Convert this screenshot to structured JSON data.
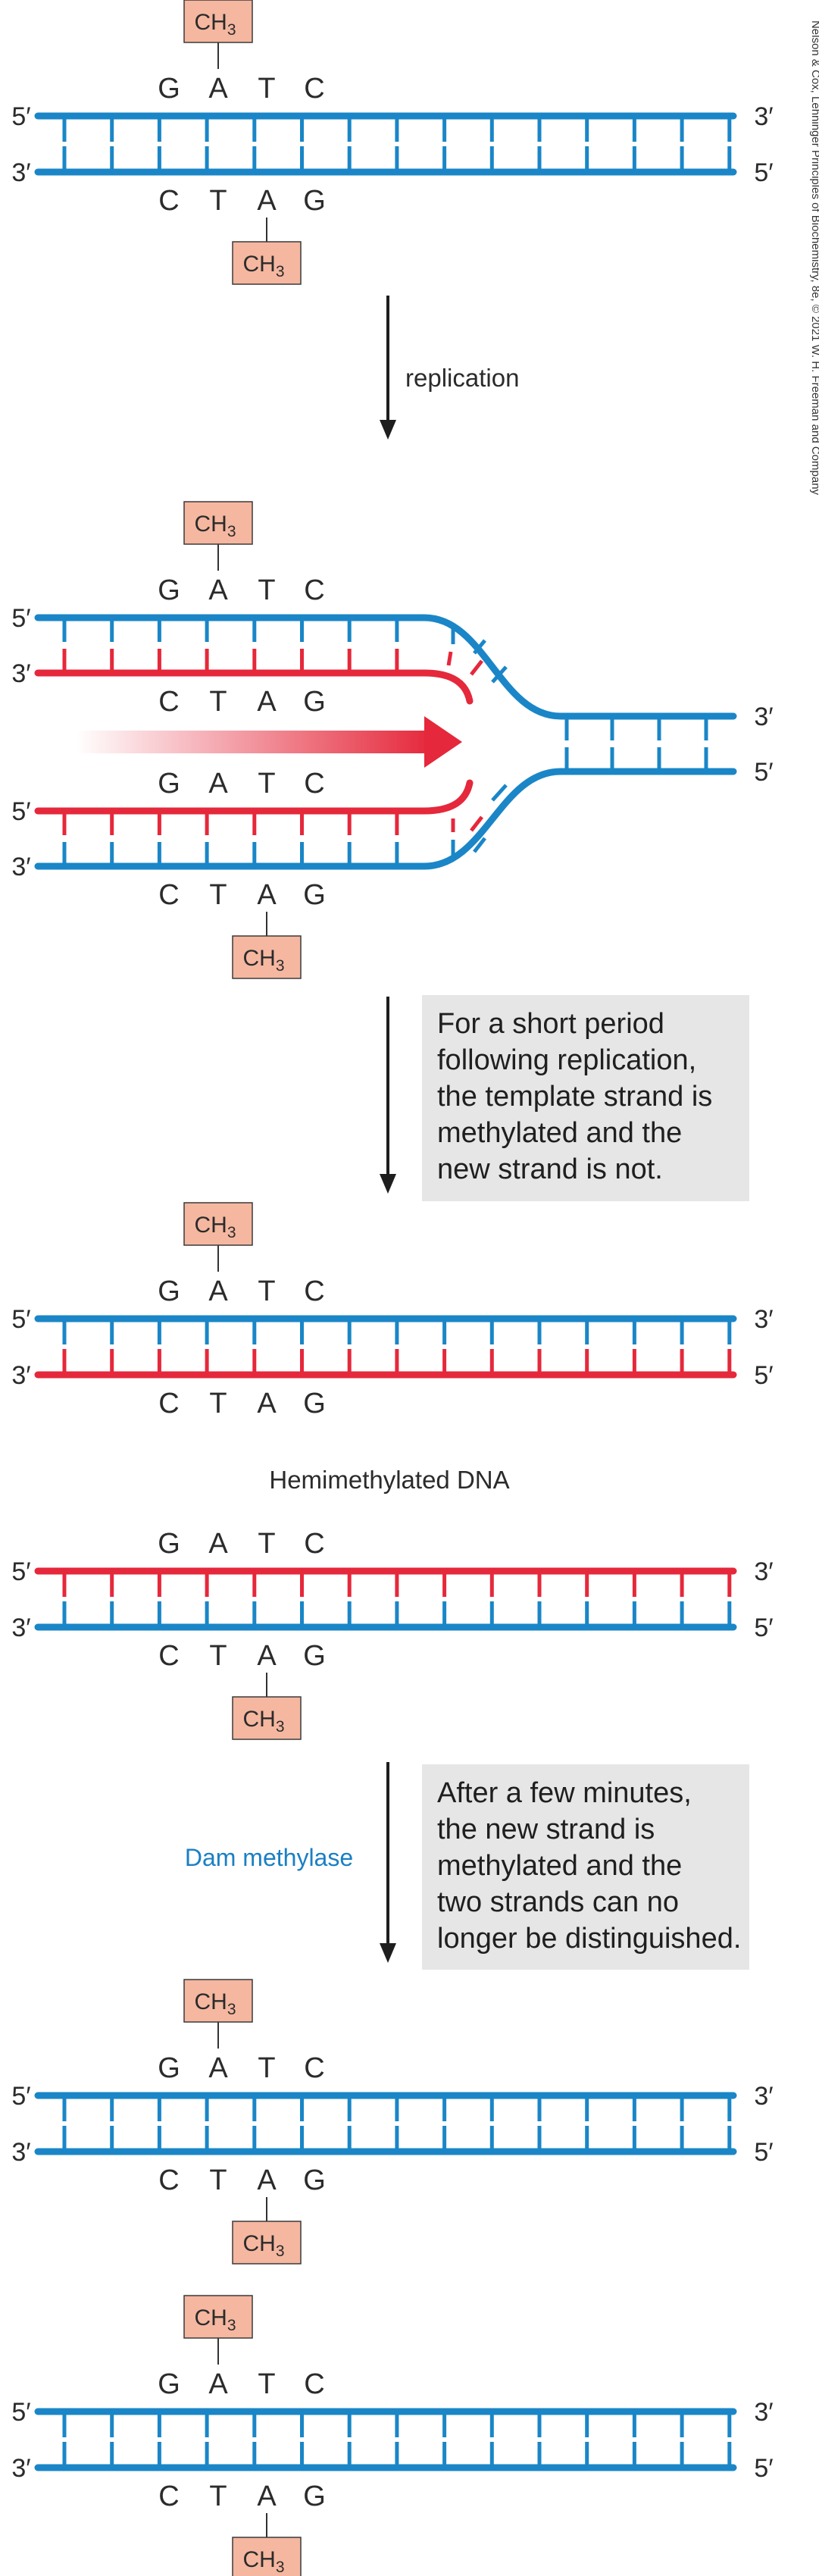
{
  "colors": {
    "blue": "#1a86c7",
    "red": "#e5283b",
    "methyl_fill": "#f5b7a0",
    "methyl_stroke": "#3a3a3a",
    "note_bg": "#e6e6e6",
    "arrow": "#1e1e1e"
  },
  "methyl_label": {
    "main": "CH",
    "sub": "3"
  },
  "top_bases": [
    "G",
    "A",
    "T",
    "C"
  ],
  "bottom_bases": [
    "C",
    "T",
    "A",
    "G"
  ],
  "ends": {
    "five": "5′",
    "three": "3′"
  },
  "step1": {
    "label": "replication"
  },
  "step2": {
    "note": [
      "For a short period",
      "following replication,",
      "the template strand is",
      "methylated and the",
      "new strand is not."
    ]
  },
  "hemimethylated_caption": "Hemimethylated DNA",
  "step3": {
    "enzyme": "Dam methylase",
    "note": [
      "After a few minutes,",
      "the new strand is",
      "methylated and the",
      "two strands can no",
      "longer be distinguished."
    ]
  },
  "credit": "Nelson & Cox, Lehninger Principles of Biochemistry, 8e, © 2021 W. H. Freeman and Company",
  "duplexes": [
    {
      "name": "parent-duplex",
      "top": "blue",
      "bottom": "blue",
      "methyl_top": true,
      "methyl_bottom": true
    },
    {
      "name": "hemi-duplex-1",
      "top": "blue",
      "bottom": "red",
      "methyl_top": true,
      "methyl_bottom": false
    },
    {
      "name": "hemi-duplex-2",
      "top": "red",
      "bottom": "blue",
      "methyl_top": false,
      "methyl_bottom": true
    },
    {
      "name": "full-duplex-1",
      "top": "blue",
      "bottom": "blue",
      "methyl_top": true,
      "methyl_bottom": true
    },
    {
      "name": "full-duplex-2",
      "top": "blue",
      "bottom": "blue",
      "methyl_top": true,
      "methyl_bottom": true
    }
  ]
}
